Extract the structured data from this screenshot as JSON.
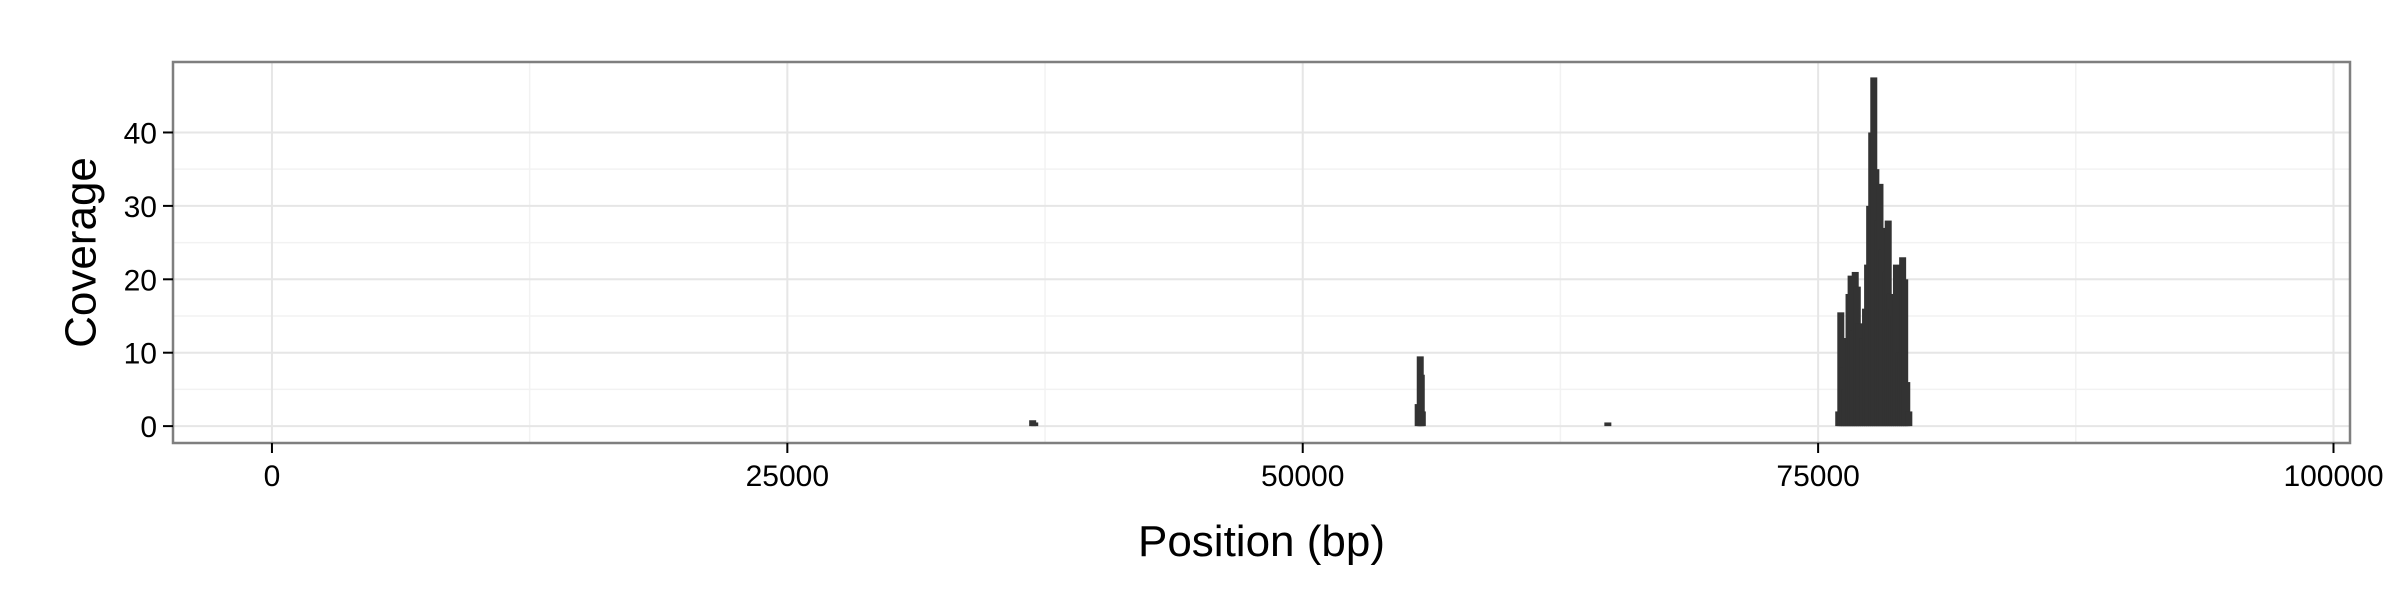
{
  "chart_data": {
    "type": "area",
    "xlabel": "Position (bp)",
    "ylabel": "Coverage",
    "xlim": [
      -4800,
      100800
    ],
    "ylim": [
      -2.3,
      49.6
    ],
    "x_ticks": [
      0,
      25000,
      50000,
      75000,
      100000
    ],
    "x_tick_labels": [
      "0",
      "25000",
      "50000",
      "75000",
      "100000"
    ],
    "y_ticks": [
      0,
      10,
      20,
      30,
      40
    ],
    "y_tick_labels": [
      "0",
      "10",
      "20",
      "30",
      "40"
    ],
    "grid": true,
    "legend": "none",
    "fill_color": "#333333",
    "panel_border_color": "#7f7f7f",
    "x": [
      36900,
      37000,
      55600,
      55700,
      55750,
      55800,
      64800,
      76000,
      76100,
      76200,
      76300,
      76400,
      76500,
      76600,
      76700,
      76800,
      76900,
      77000,
      77100,
      77200,
      77300,
      77400,
      77500,
      77600,
      77700,
      77800,
      77900,
      78000,
      78100,
      78200,
      78300,
      78400,
      78500,
      78600,
      78700,
      78800,
      78900,
      79000,
      79100,
      79200,
      79300,
      79400
    ],
    "y": [
      0.8,
      0.5,
      3,
      9.5,
      7,
      2,
      0.5,
      2,
      15.5,
      8,
      5,
      12,
      18,
      20.5,
      13,
      21,
      19,
      14,
      4,
      12,
      16,
      22,
      30,
      40,
      47.5,
      35,
      28,
      33,
      24,
      27,
      21,
      28,
      18,
      16,
      15,
      22,
      10,
      10,
      23,
      20,
      6,
      2
    ]
  }
}
